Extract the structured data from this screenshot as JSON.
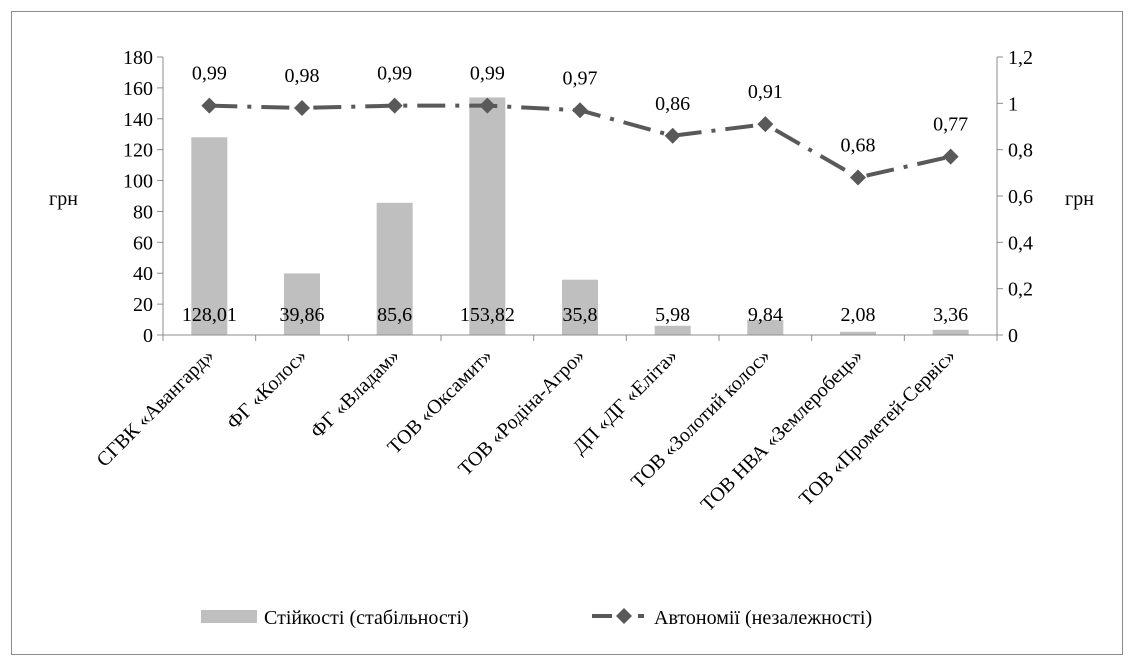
{
  "colors": {
    "bars": "#bfbfbf",
    "line": "#595959",
    "axis": "#8c8c8c",
    "text": "#000000"
  },
  "chart_data": {
    "type": "bar+line",
    "categories": [
      "СГВК «Авангард»",
      "ФГ «Колос»",
      "ФГ «Владам»",
      "ТОВ «Оксамит»",
      "ТОВ «Родіна-Агро»",
      "ДП «ДГ «Еліта»",
      "ТОВ «Золотий колос»",
      "ТОВ НВА «Землеробець»",
      "ТОВ «Прометей-Сервіс»"
    ],
    "series": [
      {
        "name": "Стійкості (стабільності)",
        "type": "bar",
        "axis": "left",
        "values": [
          128.01,
          39.86,
          85.6,
          153.82,
          35.8,
          5.98,
          9.84,
          2.08,
          3.36
        ],
        "labels": [
          "128,01",
          "39,86",
          "85,6",
          "153,82",
          "35,8",
          "5,98",
          "9,84",
          "2,08",
          "3,36"
        ]
      },
      {
        "name": "Автономії (незалежності)",
        "type": "line",
        "axis": "right",
        "values": [
          0.99,
          0.98,
          0.99,
          0.99,
          0.97,
          0.86,
          0.91,
          0.68,
          0.77
        ],
        "labels": [
          "0,99",
          "0,98",
          "0,99",
          "0,99",
          "0,97",
          "0,86",
          "0,91",
          "0,68",
          "0,77"
        ]
      }
    ],
    "y_left": {
      "label": "грн",
      "range": [
        0,
        180
      ],
      "ticks": [
        0,
        20,
        40,
        60,
        80,
        100,
        120,
        140,
        160,
        180
      ],
      "tick_labels": [
        "0",
        "20",
        "40",
        "60",
        "80",
        "100",
        "120",
        "140",
        "160",
        "180"
      ]
    },
    "y_right": {
      "label": "грн",
      "range": [
        0,
        1.2
      ],
      "ticks": [
        0,
        0.2,
        0.4,
        0.6,
        0.8,
        1,
        1.2
      ],
      "tick_labels": [
        "0",
        "0,2",
        "0,4",
        "0,6",
        "0,8",
        "1",
        "1,2"
      ]
    },
    "grid": false,
    "legend_position": "bottom"
  }
}
